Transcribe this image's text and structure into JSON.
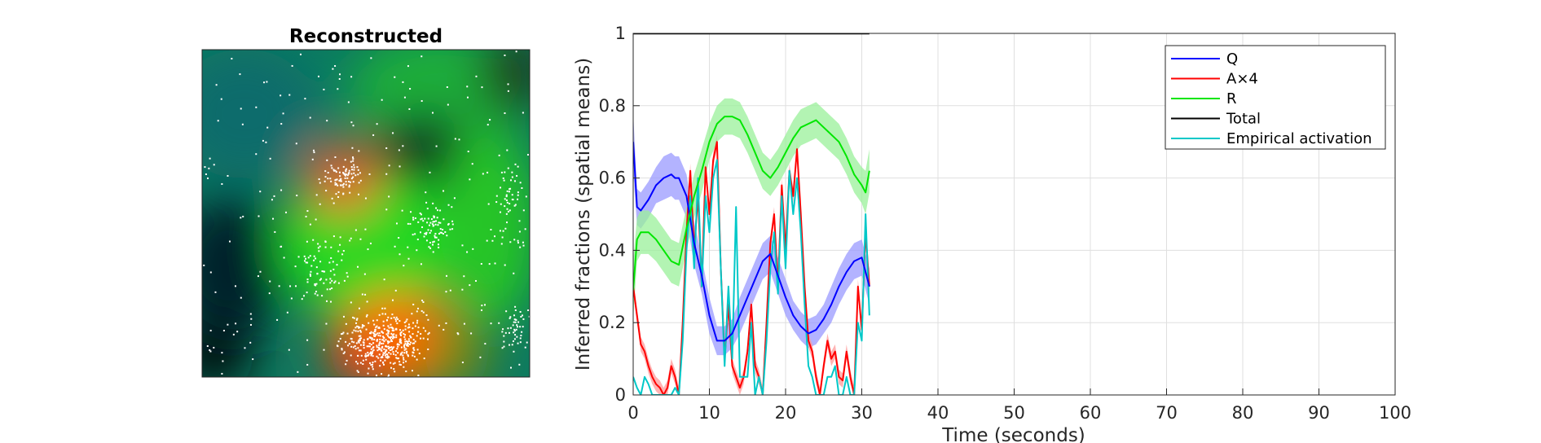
{
  "image_panel": {
    "title": "Reconstructed"
  },
  "chart_data": {
    "type": "line",
    "title": "",
    "xlabel": "Time (seconds)",
    "ylabel": "Inferred fractions (spatial means)",
    "xlim": [
      0,
      100
    ],
    "ylim": [
      0,
      1
    ],
    "xticks": [
      "0",
      "10",
      "20",
      "30",
      "40",
      "50",
      "60",
      "70",
      "80",
      "90",
      "100"
    ],
    "yticks": [
      "0",
      "0.2",
      "0.4",
      "0.6",
      "0.8",
      "1"
    ],
    "grid": true,
    "legend_position": "top-right",
    "series": [
      {
        "name": "Q",
        "color": "#0000ff",
        "band_color": "#9999ff",
        "x": [
          0,
          0.5,
          1,
          2,
          3,
          4,
          5,
          5.5,
          6,
          7,
          8,
          9,
          10,
          11,
          12,
          13,
          14,
          15,
          16,
          17,
          18,
          19,
          20,
          21,
          22,
          23,
          24,
          25,
          26,
          27,
          28,
          29,
          30,
          30.5,
          31
        ],
        "y": [
          0.7,
          0.52,
          0.51,
          0.54,
          0.58,
          0.6,
          0.61,
          0.6,
          0.6,
          0.55,
          0.42,
          0.33,
          0.22,
          0.15,
          0.15,
          0.17,
          0.22,
          0.27,
          0.32,
          0.37,
          0.39,
          0.33,
          0.27,
          0.22,
          0.19,
          0.17,
          0.18,
          0.21,
          0.25,
          0.3,
          0.34,
          0.37,
          0.38,
          0.34,
          0.3
        ],
        "band_halfwidth": [
          0.08,
          0.05,
          0.05,
          0.05,
          0.05,
          0.06,
          0.06,
          0.06,
          0.06,
          0.06,
          0.06,
          0.05,
          0.05,
          0.04,
          0.04,
          0.04,
          0.05,
          0.05,
          0.05,
          0.05,
          0.05,
          0.05,
          0.05,
          0.04,
          0.04,
          0.04,
          0.04,
          0.04,
          0.05,
          0.05,
          0.05,
          0.05,
          0.05,
          0.05,
          0.05
        ]
      },
      {
        "name": "A×4",
        "color": "#ff0000",
        "band_color": "#ff9999",
        "x": [
          0,
          0.5,
          1,
          1.5,
          2,
          2.5,
          3,
          3.5,
          4,
          4.5,
          5,
          5.5,
          6,
          6.5,
          7,
          7.5,
          8,
          8.5,
          9,
          9.5,
          10,
          10.5,
          11,
          11.5,
          12,
          12.5,
          13,
          13.5,
          14,
          14.5,
          15,
          15.5,
          16,
          16.5,
          17,
          17.5,
          18,
          18.5,
          19,
          19.5,
          20,
          20.5,
          21,
          21.5,
          22,
          22.5,
          23,
          23.5,
          24,
          24.5,
          25,
          25.5,
          26,
          26.5,
          27,
          27.5,
          28,
          28.5,
          29,
          29.5,
          30,
          30.5,
          31
        ],
        "y": [
          0.3,
          0.22,
          0.14,
          0.12,
          0.08,
          0.05,
          0.03,
          0.02,
          0.0,
          0.02,
          0.08,
          0.05,
          0.0,
          0.2,
          0.45,
          0.62,
          0.4,
          0.55,
          0.3,
          0.63,
          0.5,
          0.65,
          0.7,
          0.35,
          0.1,
          0.25,
          0.08,
          0.05,
          0.02,
          0.05,
          0.12,
          0.25,
          0.08,
          0.05,
          0.0,
          0.2,
          0.42,
          0.5,
          0.3,
          0.58,
          0.4,
          0.62,
          0.55,
          0.68,
          0.5,
          0.3,
          0.15,
          0.12,
          0.05,
          0.0,
          0.08,
          0.15,
          0.1,
          0.12,
          0.05,
          0.04,
          0.12,
          0.05,
          0.0,
          0.3,
          0.18,
          0.45,
          0.3
        ],
        "band_halfwidth": 0.02
      },
      {
        "name": "R",
        "color": "#00e600",
        "band_color": "#99f099",
        "x": [
          0,
          0.5,
          1,
          2,
          3,
          4,
          5,
          6,
          7,
          8,
          9,
          10,
          11,
          12,
          13,
          14,
          15,
          16,
          17,
          18,
          19,
          20,
          21,
          22,
          23,
          24,
          25,
          26,
          27,
          28,
          29,
          30,
          30.5,
          31
        ],
        "y": [
          0.29,
          0.43,
          0.45,
          0.45,
          0.43,
          0.4,
          0.37,
          0.36,
          0.46,
          0.55,
          0.62,
          0.7,
          0.75,
          0.77,
          0.77,
          0.76,
          0.72,
          0.67,
          0.62,
          0.6,
          0.63,
          0.67,
          0.71,
          0.74,
          0.75,
          0.76,
          0.74,
          0.72,
          0.7,
          0.66,
          0.61,
          0.58,
          0.56,
          0.62
        ],
        "band_halfwidth": [
          0.08,
          0.06,
          0.06,
          0.06,
          0.06,
          0.06,
          0.06,
          0.06,
          0.06,
          0.06,
          0.06,
          0.05,
          0.05,
          0.05,
          0.05,
          0.05,
          0.05,
          0.05,
          0.05,
          0.05,
          0.05,
          0.05,
          0.05,
          0.05,
          0.05,
          0.05,
          0.05,
          0.05,
          0.05,
          0.05,
          0.05,
          0.05,
          0.06,
          0.06
        ]
      },
      {
        "name": "Total",
        "color": "#000000",
        "x": [
          0,
          31
        ],
        "y": [
          1,
          1
        ]
      },
      {
        "name": "Empirical activation",
        "color": "#00c8c8",
        "x": [
          0,
          0.5,
          1,
          1.5,
          2,
          2.5,
          3,
          3.5,
          4,
          4.5,
          5,
          5.5,
          6,
          6.5,
          7,
          7.5,
          8,
          8.5,
          9,
          9.5,
          10,
          10.5,
          11,
          11.5,
          12,
          12.5,
          13,
          13.5,
          14,
          14.5,
          15,
          15.5,
          16,
          16.5,
          17,
          17.5,
          18,
          18.5,
          19,
          19.5,
          20,
          20.5,
          21,
          21.5,
          22,
          22.5,
          23,
          23.5,
          24,
          24.5,
          25,
          25.5,
          26,
          26.5,
          27,
          27.5,
          28,
          28.5,
          29,
          29.5,
          30,
          30.5,
          31
        ],
        "y": [
          0.05,
          0.02,
          0.0,
          0.05,
          0.03,
          0.0,
          0.0,
          0.0,
          0.0,
          0.0,
          0.0,
          0.02,
          0.0,
          0.15,
          0.4,
          0.55,
          0.35,
          0.6,
          0.3,
          0.55,
          0.45,
          0.6,
          0.65,
          0.35,
          0.08,
          0.3,
          0.1,
          0.52,
          0.05,
          0.05,
          0.05,
          0.2,
          0.0,
          0.05,
          0.0,
          0.15,
          0.35,
          0.45,
          0.28,
          0.55,
          0.35,
          0.62,
          0.5,
          0.6,
          0.45,
          0.25,
          0.08,
          0.05,
          0.0,
          0.0,
          0.0,
          0.05,
          0.05,
          0.08,
          0.0,
          0.0,
          0.05,
          0.0,
          0.0,
          0.2,
          0.15,
          0.5,
          0.22
        ]
      }
    ]
  }
}
